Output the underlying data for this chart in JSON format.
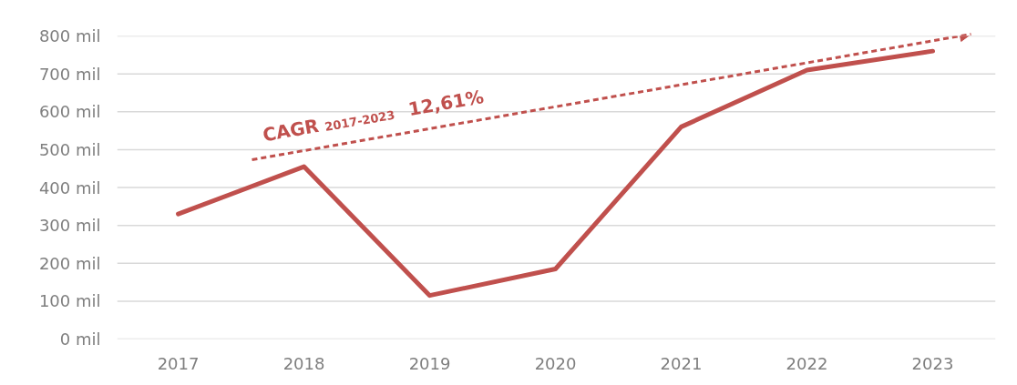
{
  "chart_data": {
    "type": "line",
    "categories": [
      "2017",
      "2018",
      "2019",
      "2020",
      "2021",
      "2022",
      "2023"
    ],
    "series": [
      {
        "color": "#c0504d",
        "values": [
          330,
          455,
          115,
          185,
          560,
          710,
          760
        ]
      }
    ],
    "ylim": [
      0,
      800
    ],
    "yticks": [
      {
        "value": 0,
        "label": "0 mil"
      },
      {
        "value": 100,
        "label": "100 mil"
      },
      {
        "value": 200,
        "label": "200 mil"
      },
      {
        "value": 300,
        "label": "300 mil"
      },
      {
        "value": 400,
        "label": "400 mil"
      },
      {
        "value": 500,
        "label": "500 mil"
      },
      {
        "value": 600,
        "label": "600 mil"
      },
      {
        "value": 700,
        "label": "700 mil"
      },
      {
        "value": 800,
        "label": "800 mil"
      }
    ],
    "grid": "y",
    "marker": "none",
    "line_style": "solid",
    "annotations": [
      "CAGR$_{2017-2023}$ 12,61%"
    ]
  }
}
